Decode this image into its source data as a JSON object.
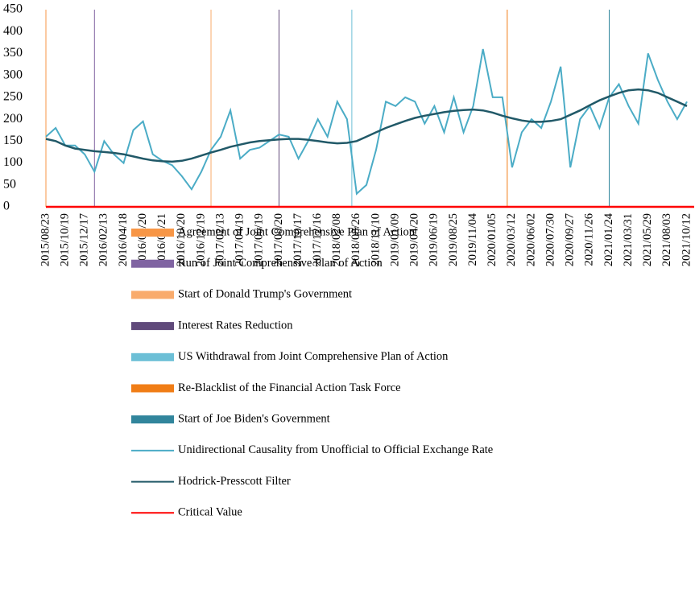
{
  "chart_data": {
    "type": "line",
    "categories": [
      "2015/08/23",
      null,
      "2015/10/19",
      null,
      "2015/12/17",
      null,
      "2016/02/13",
      null,
      "2016/04/18",
      null,
      "2016/06/20",
      null,
      "2016/08/21",
      null,
      "2016/10/20",
      null,
      "2016/12/19",
      null,
      "2017/02/13",
      null,
      "2017/04/19",
      null,
      "2017/06/19",
      null,
      "2017/08/20",
      null,
      "2017/10/17",
      null,
      "2017/12/16",
      null,
      "2018/02/08",
      null,
      "2018/08/26",
      null,
      "2018/11/10",
      null,
      "2019/01/09",
      null,
      "2019/04/20",
      null,
      "2019/06/19",
      null,
      "2019/08/25",
      null,
      "2019/11/04",
      null,
      "2020/01/05",
      null,
      "2020/03/12",
      null,
      "2020/06/02",
      null,
      "2020/07/30",
      null,
      "2020/09/27",
      null,
      "2020/11/26",
      null,
      "2021/01/24",
      null,
      "2021/03/31",
      null,
      "2021/05/29",
      null,
      "2021/08/03",
      null,
      "2021/10/12"
    ],
    "series": [
      {
        "name": "Unidirectional Causality from Unofficial to Official Exchange Rate",
        "color": "#4bacc6",
        "values": [
          160,
          180,
          140,
          140,
          120,
          80,
          150,
          120,
          100,
          175,
          195,
          120,
          105,
          95,
          70,
          40,
          80,
          130,
          160,
          220,
          110,
          130,
          135,
          150,
          165,
          160,
          110,
          150,
          200,
          160,
          240,
          200,
          30,
          50,
          130,
          240,
          230,
          250,
          240,
          190,
          230,
          170,
          250,
          170,
          230,
          360,
          250,
          250,
          90,
          170,
          200,
          180,
          240,
          320,
          90,
          200,
          230,
          180,
          250,
          280,
          230,
          190,
          350,
          290,
          240,
          200,
          240
        ]
      },
      {
        "name": "Hodrick-Presscott Filter",
        "color": "#215968",
        "values": [
          155,
          150,
          140,
          133,
          130,
          127,
          125,
          123,
          120,
          115,
          110,
          106,
          104,
          103,
          105,
          110,
          117,
          124,
          130,
          137,
          142,
          147,
          150,
          152,
          154,
          155,
          155,
          153,
          150,
          147,
          145,
          146,
          150,
          160,
          170,
          180,
          188,
          196,
          203,
          208,
          212,
          216,
          219,
          221,
          222,
          220,
          215,
          208,
          202,
          197,
          194,
          194,
          196,
          200,
          210,
          220,
          232,
          243,
          252,
          260,
          266,
          268,
          266,
          260,
          250,
          240,
          230
        ]
      }
    ],
    "critical_value": {
      "name": "Critical Value",
      "color": "#ff0000",
      "value": 0
    },
    "events": [
      {
        "name": "Agreement of Joint Comprehensive Plan of Action",
        "color": "#f79646",
        "at": 0
      },
      {
        "name": "Run of Joint Comprehensive Plan of Action",
        "color": "#8064a2",
        "at": 5
      },
      {
        "name": "Start of Donald Trump's Government",
        "color": "#f9ab6c",
        "at": 17
      },
      {
        "name": "Interest Rates Reduction",
        "color": "#604a7b",
        "at": 24
      },
      {
        "name": "US Withdrawal from Joint Comprehensive Plan of Action",
        "color": "#6cbfd6",
        "at": 31.5
      },
      {
        "name": "Re-Blacklist of the Financial Action Task Force",
        "color": "#f07d16",
        "at": 47.5
      },
      {
        "name": "Start of Joe Biden's Government",
        "color": "#31859c",
        "at": 58
      }
    ],
    "ylim": [
      0,
      450
    ],
    "yticks": [
      0,
      50,
      100,
      150,
      200,
      250,
      300,
      350,
      400,
      450
    ]
  }
}
